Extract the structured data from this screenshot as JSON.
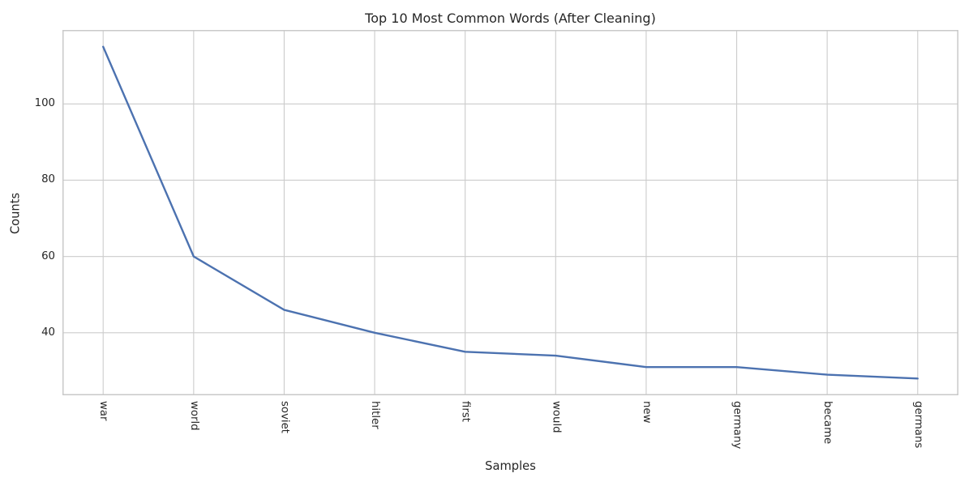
{
  "chart_data": {
    "type": "line",
    "title": "Top 10 Most Common Words (After Cleaning)",
    "xlabel": "Samples",
    "ylabel": "Counts",
    "categories": [
      "war",
      "world",
      "soviet",
      "hitler",
      "first",
      "would",
      "new",
      "germany",
      "became",
      "germans"
    ],
    "values": [
      115,
      60,
      46,
      40,
      35,
      34,
      31,
      31,
      29,
      28
    ],
    "yticks": [
      40,
      60,
      80,
      100
    ],
    "ylim": [
      23.6,
      119.4
    ],
    "x_margin": 0.45,
    "grid": true,
    "legend": "none",
    "colors": {
      "line": "#4C72B0",
      "grid": "#cccccc",
      "spine": "#c9c9c9",
      "text": "#262626",
      "background": "#ffffff"
    }
  }
}
